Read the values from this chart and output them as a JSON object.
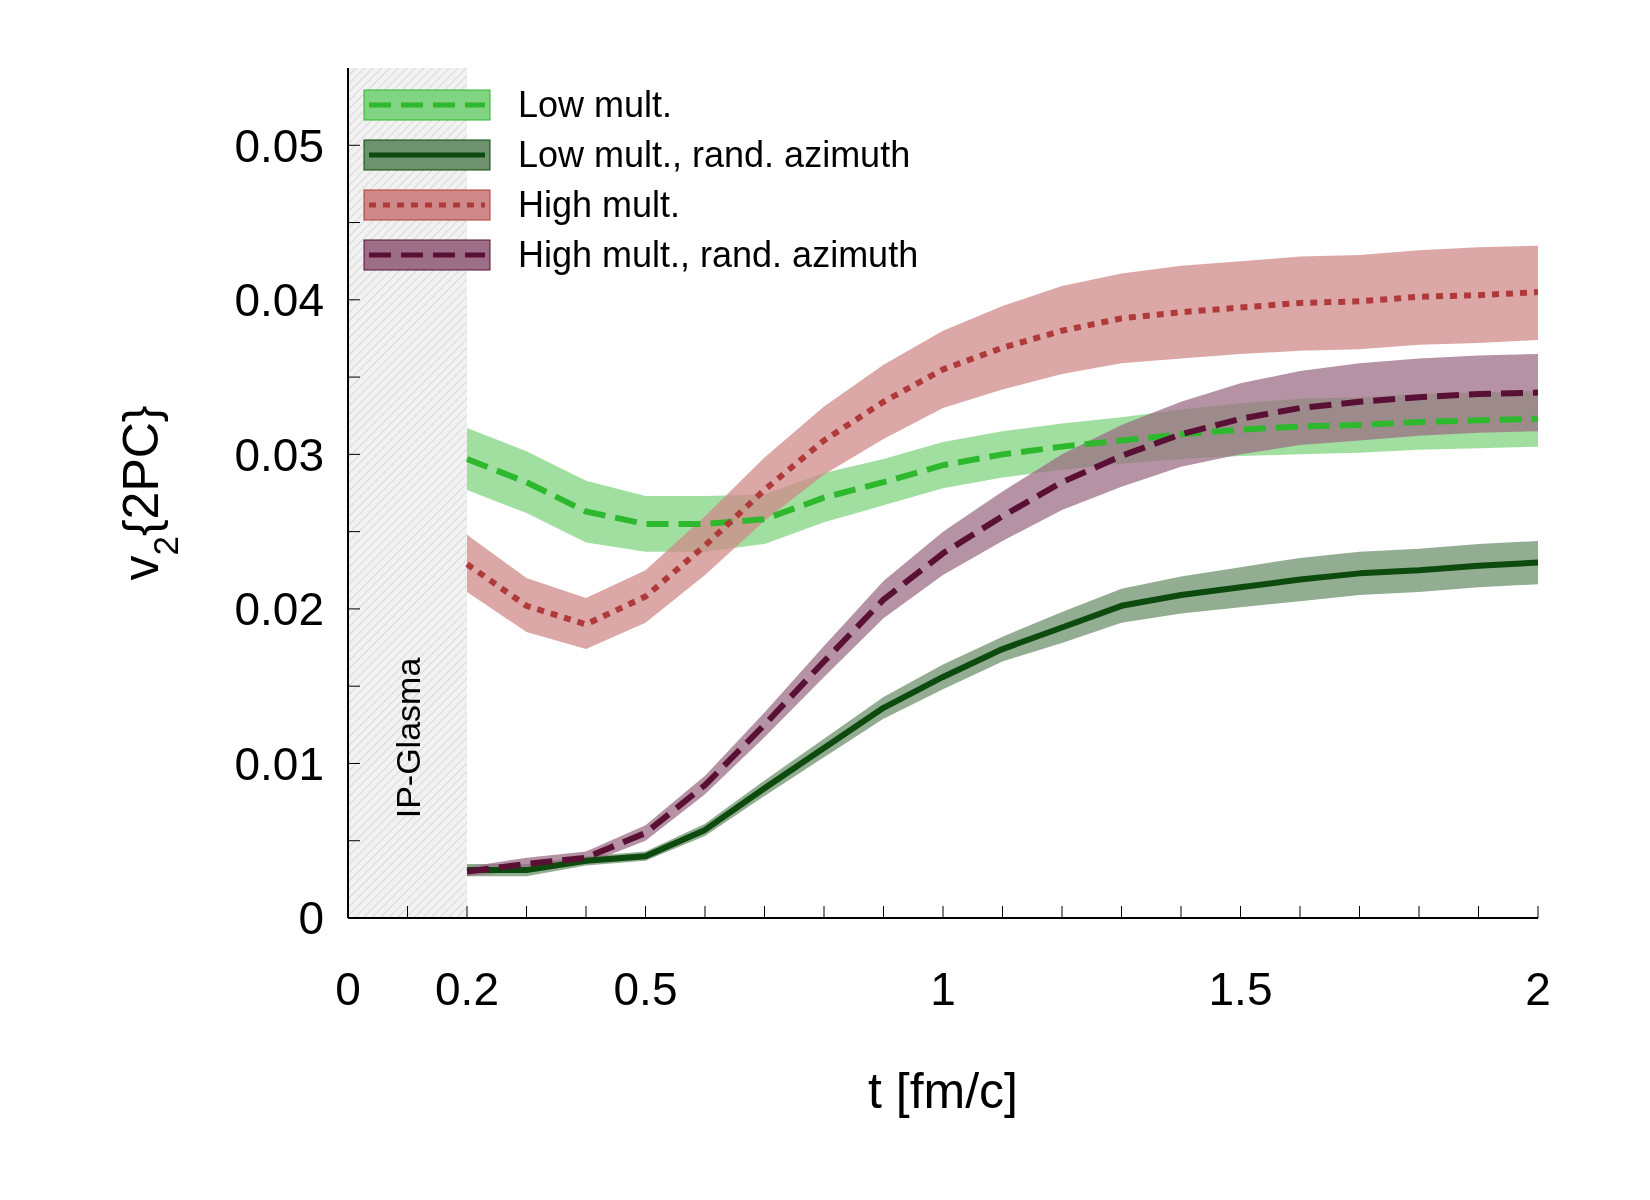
{
  "chart_data": {
    "type": "line",
    "xlabel": "t [fm/c]",
    "ylabel": "v$_{2}${2PC}",
    "x": [
      0.2,
      0.3,
      0.4,
      0.5,
      0.6,
      0.7,
      0.8,
      0.9,
      1.0,
      1.1,
      1.2,
      1.3,
      1.4,
      1.5,
      1.6,
      1.7,
      1.8,
      1.9,
      2.0
    ],
    "xlim": [
      0,
      2
    ],
    "ylim": [
      0,
      0.055
    ],
    "xticks": [
      0,
      {
        "value": 0.1,
        "label": null
      },
      0.2,
      {
        "value": 0.3,
        "label": null
      },
      {
        "value": 0.4,
        "label": null
      },
      0.5,
      {
        "value": 0.6,
        "label": null
      },
      {
        "value": 0.7,
        "label": null
      },
      {
        "value": 0.8,
        "label": null
      },
      {
        "value": 0.9,
        "label": null
      },
      1,
      {
        "value": 1.1,
        "label": null
      },
      {
        "value": 1.2,
        "label": null
      },
      {
        "value": 1.3,
        "label": null
      },
      {
        "value": 1.4,
        "label": null
      },
      1.5,
      {
        "value": 1.6,
        "label": null
      },
      {
        "value": 1.7,
        "label": null
      },
      {
        "value": 1.8,
        "label": null
      },
      {
        "value": 1.9,
        "label": null
      },
      2
    ],
    "yticks": [
      0,
      {
        "value": 0.005,
        "label": null
      },
      0.01,
      {
        "value": 0.015,
        "label": null
      },
      0.02,
      {
        "value": 0.025,
        "label": null
      },
      0.03,
      {
        "value": 0.035,
        "label": null
      },
      0.04,
      {
        "value": 0.045,
        "label": null
      },
      0.05
    ],
    "grid": false,
    "legend": "top left",
    "marker": "none",
    "bands": [
      {
        "axis": "x",
        "from": 0,
        "to": 0.2,
        "label": "IP-Glasma",
        "color": "#d0d0d0"
      }
    ],
    "series": [
      {
        "name": "Low mult.",
        "color": "#2db82d",
        "line_style": "dashed",
        "values": [
          0.0297,
          0.0282,
          0.0263,
          0.0255,
          0.0255,
          0.0258,
          0.0272,
          0.0282,
          0.0293,
          0.03,
          0.0305,
          0.0309,
          0.0313,
          0.0316,
          0.0318,
          0.0319,
          0.0321,
          0.0322,
          0.0323
        ],
        "lower": [
          0.0277,
          0.0262,
          0.0243,
          0.0237,
          0.0237,
          0.0242,
          0.0256,
          0.0267,
          0.0278,
          0.0285,
          0.029,
          0.0294,
          0.0297,
          0.0299,
          0.03,
          0.0301,
          0.0303,
          0.0304,
          0.0305
        ],
        "upper": [
          0.0317,
          0.0302,
          0.0283,
          0.0273,
          0.0273,
          0.0274,
          0.0288,
          0.0297,
          0.0308,
          0.0315,
          0.032,
          0.0324,
          0.0329,
          0.0333,
          0.0336,
          0.0337,
          0.0339,
          0.034,
          0.0341
        ]
      },
      {
        "name": "Low mult., rand. azimuth",
        "color": "#0d4a0d",
        "line_style": "solid",
        "values": [
          0.0031,
          0.0031,
          0.0037,
          0.004,
          0.0057,
          0.0084,
          0.011,
          0.0136,
          0.0156,
          0.0174,
          0.0188,
          0.0202,
          0.0209,
          0.0214,
          0.0219,
          0.0223,
          0.0225,
          0.0228,
          0.023
        ],
        "lower": [
          0.0027,
          0.0027,
          0.0034,
          0.0037,
          0.0053,
          0.0079,
          0.0104,
          0.0129,
          0.0148,
          0.0166,
          0.0178,
          0.0191,
          0.0197,
          0.0201,
          0.0205,
          0.0209,
          0.0211,
          0.0214,
          0.0216
        ],
        "upper": [
          0.0035,
          0.0035,
          0.004,
          0.0043,
          0.0061,
          0.0089,
          0.0116,
          0.0143,
          0.0164,
          0.0182,
          0.0198,
          0.0213,
          0.0221,
          0.0227,
          0.0233,
          0.0237,
          0.0239,
          0.0242,
          0.0244
        ]
      },
      {
        "name": "High mult.",
        "color": "#b03a3a",
        "line_style": "dotted",
        "values": [
          0.0229,
          0.0202,
          0.019,
          0.0208,
          0.0241,
          0.0277,
          0.0309,
          0.0334,
          0.0355,
          0.0369,
          0.038,
          0.0388,
          0.0392,
          0.0395,
          0.0398,
          0.0399,
          0.0402,
          0.0403,
          0.0405
        ],
        "lower": [
          0.0211,
          0.0185,
          0.0174,
          0.0191,
          0.0222,
          0.0257,
          0.0287,
          0.031,
          0.033,
          0.0342,
          0.0352,
          0.0359,
          0.0362,
          0.0365,
          0.0367,
          0.0368,
          0.0371,
          0.0372,
          0.0374
        ],
        "upper": [
          0.0248,
          0.022,
          0.0207,
          0.0225,
          0.026,
          0.0298,
          0.0331,
          0.0358,
          0.038,
          0.0396,
          0.0409,
          0.0417,
          0.0422,
          0.0425,
          0.0428,
          0.0429,
          0.0432,
          0.0434,
          0.0435
        ]
      },
      {
        "name": "High mult., rand. azimuth",
        "color": "#5a0f35",
        "line_style": "dashed",
        "values": [
          0.003,
          0.0035,
          0.0039,
          0.0055,
          0.0086,
          0.0125,
          0.0166,
          0.0206,
          0.0236,
          0.026,
          0.0282,
          0.0299,
          0.0313,
          0.0323,
          0.033,
          0.0334,
          0.0337,
          0.0339,
          0.034
        ],
        "lower": [
          0.0027,
          0.0031,
          0.0035,
          0.005,
          0.008,
          0.0117,
          0.0156,
          0.0194,
          0.0222,
          0.0244,
          0.0264,
          0.0279,
          0.0292,
          0.03,
          0.0306,
          0.0309,
          0.0312,
          0.0314,
          0.0315
        ],
        "upper": [
          0.0033,
          0.0039,
          0.0043,
          0.006,
          0.0092,
          0.0133,
          0.0176,
          0.0218,
          0.025,
          0.0276,
          0.03,
          0.0319,
          0.0334,
          0.0346,
          0.0354,
          0.0359,
          0.0362,
          0.0364,
          0.0365
        ]
      }
    ]
  }
}
